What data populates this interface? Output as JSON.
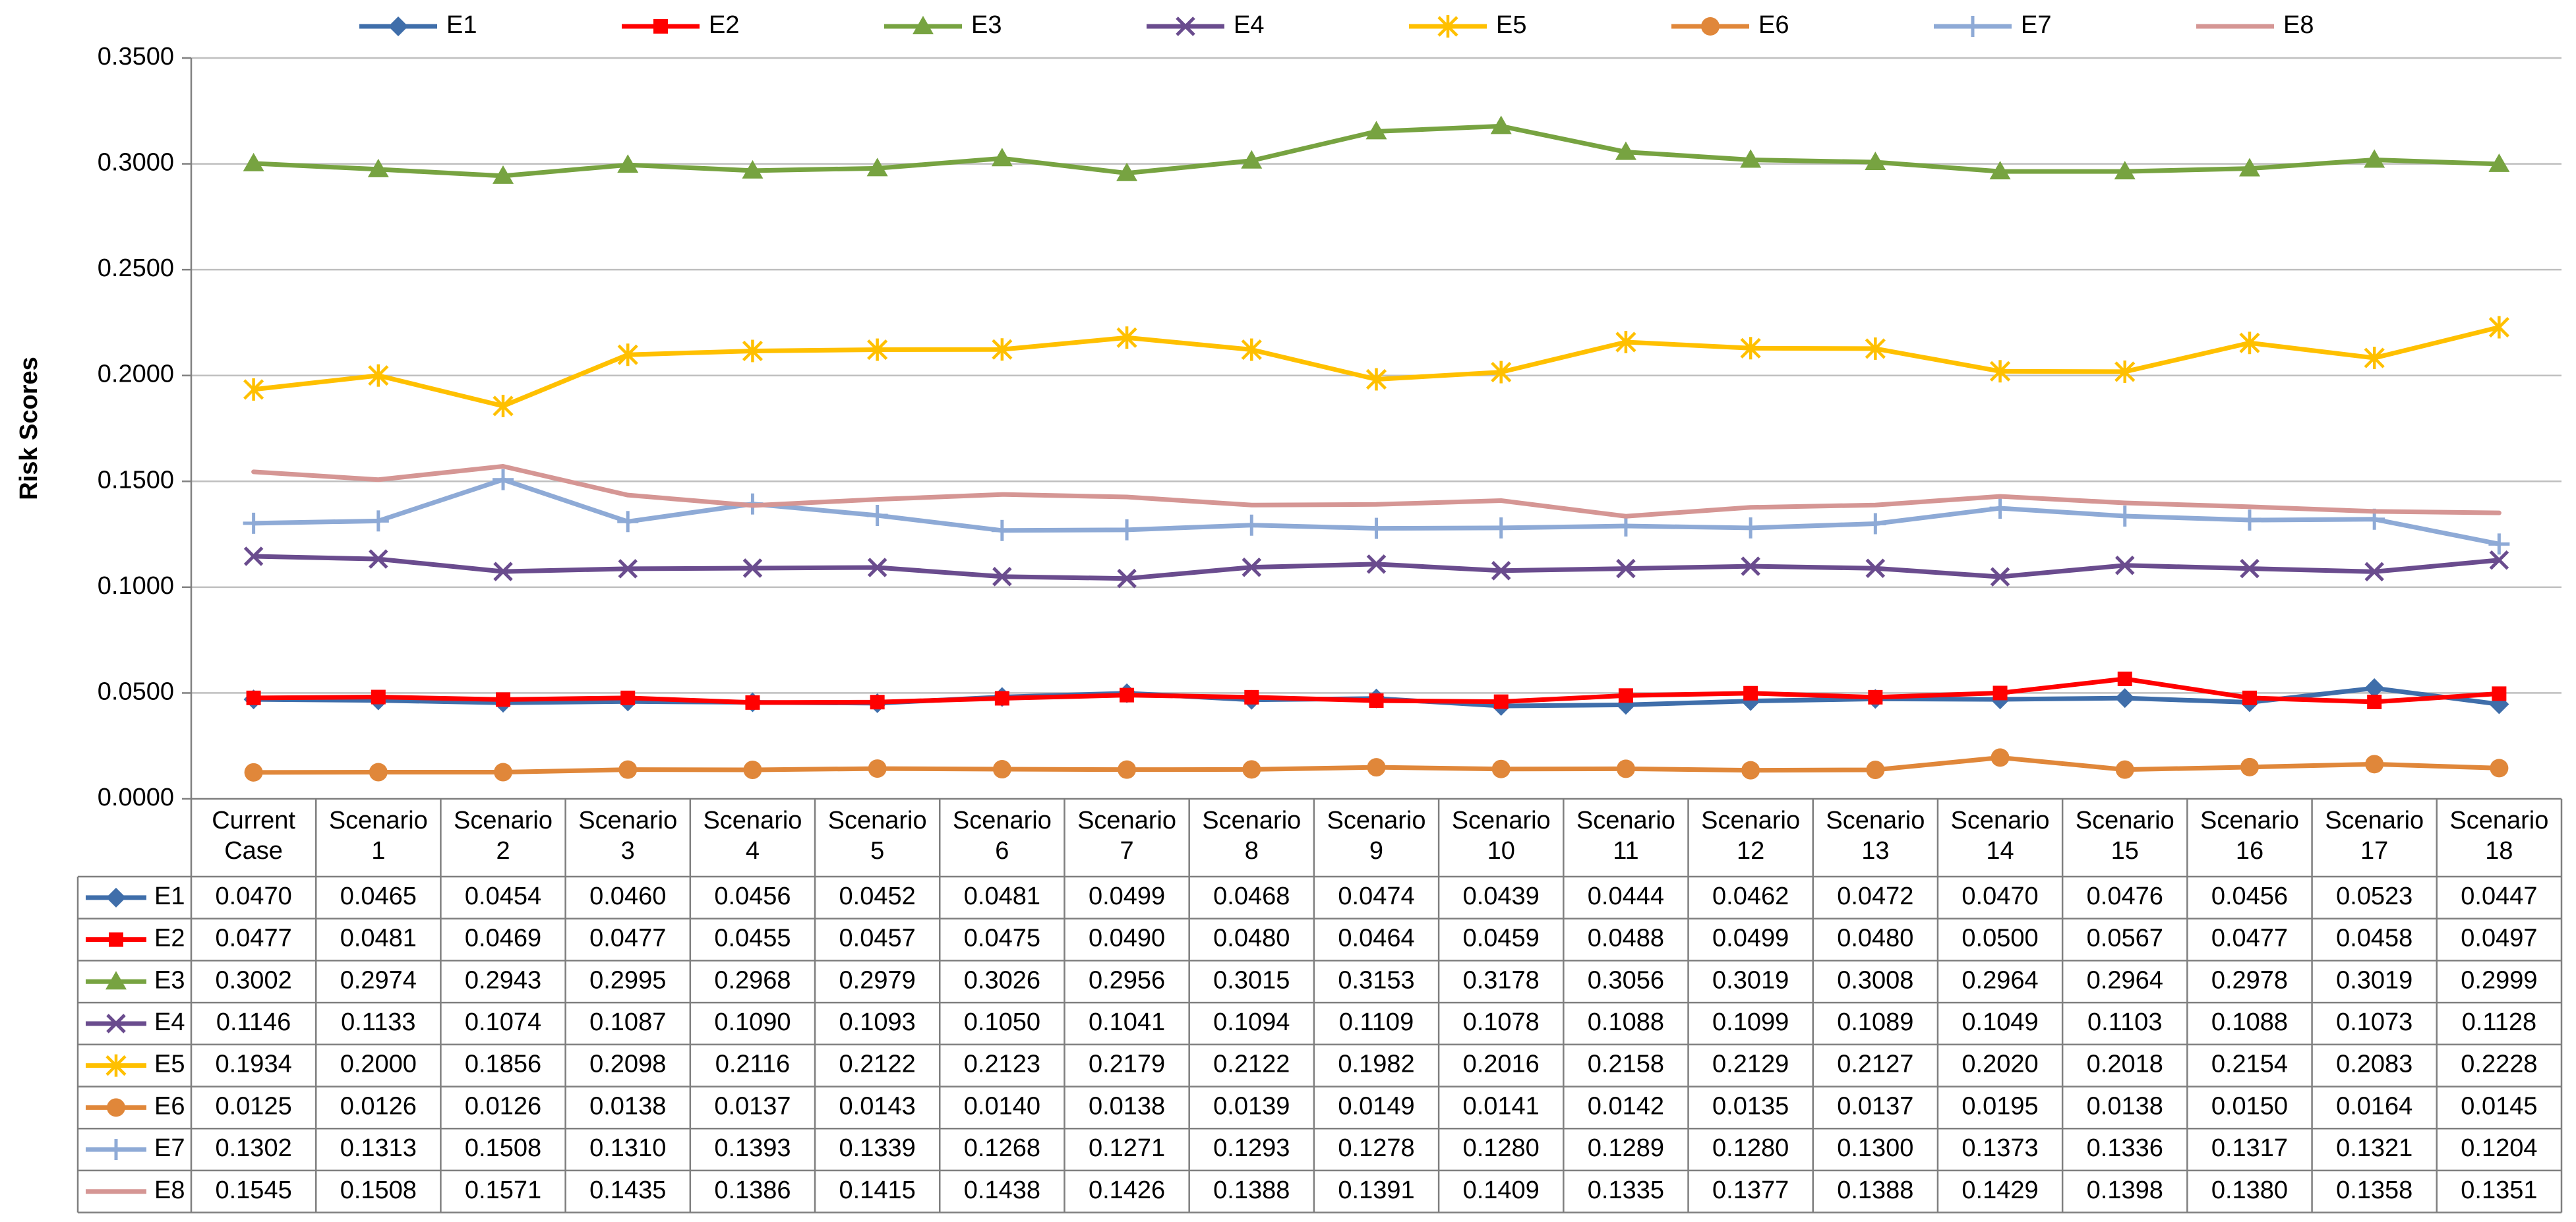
{
  "chart_data": {
    "type": "line",
    "title": "",
    "xlabel": "",
    "ylabel": "Risk Scores",
    "ylim": [
      0,
      0.35
    ],
    "yticks": [
      "0.0000",
      "0.0500",
      "0.1000",
      "0.1500",
      "0.2000",
      "0.2500",
      "0.3000",
      "0.3500"
    ],
    "grid": true,
    "legend_position": "top",
    "categories": [
      [
        "Current",
        "Case"
      ],
      [
        "Scenario",
        "1"
      ],
      [
        "Scenario",
        "2"
      ],
      [
        "Scenario",
        "3"
      ],
      [
        "Scenario",
        "4"
      ],
      [
        "Scenario",
        "5"
      ],
      [
        "Scenario",
        "6"
      ],
      [
        "Scenario",
        "7"
      ],
      [
        "Scenario",
        "8"
      ],
      [
        "Scenario",
        "9"
      ],
      [
        "Scenario",
        "10"
      ],
      [
        "Scenario",
        "11"
      ],
      [
        "Scenario",
        "12"
      ],
      [
        "Scenario",
        "13"
      ],
      [
        "Scenario",
        "14"
      ],
      [
        "Scenario",
        "15"
      ],
      [
        "Scenario",
        "16"
      ],
      [
        "Scenario",
        "17"
      ],
      [
        "Scenario",
        "18"
      ]
    ],
    "series": [
      {
        "name": "E1",
        "color": "#3F6EAA",
        "marker": "diamond",
        "values": [
          "0.0470",
          "0.0465",
          "0.0454",
          "0.0460",
          "0.0456",
          "0.0452",
          "0.0481",
          "0.0499",
          "0.0468",
          "0.0474",
          "0.0439",
          "0.0444",
          "0.0462",
          "0.0472",
          "0.0470",
          "0.0476",
          "0.0456",
          "0.0523",
          "0.0447"
        ]
      },
      {
        "name": "E2",
        "color": "#FF0000",
        "marker": "square",
        "values": [
          "0.0477",
          "0.0481",
          "0.0469",
          "0.0477",
          "0.0455",
          "0.0457",
          "0.0475",
          "0.0490",
          "0.0480",
          "0.0464",
          "0.0459",
          "0.0488",
          "0.0499",
          "0.0480",
          "0.0500",
          "0.0567",
          "0.0477",
          "0.0458",
          "0.0497"
        ]
      },
      {
        "name": "E3",
        "color": "#77A341",
        "marker": "triangle",
        "values": [
          "0.3002",
          "0.2974",
          "0.2943",
          "0.2995",
          "0.2968",
          "0.2979",
          "0.3026",
          "0.2956",
          "0.3015",
          "0.3153",
          "0.3178",
          "0.3056",
          "0.3019",
          "0.3008",
          "0.2964",
          "0.2964",
          "0.2978",
          "0.3019",
          "0.2999"
        ]
      },
      {
        "name": "E4",
        "color": "#6A4C8E",
        "marker": "x",
        "values": [
          "0.1146",
          "0.1133",
          "0.1074",
          "0.1087",
          "0.1090",
          "0.1093",
          "0.1050",
          "0.1041",
          "0.1094",
          "0.1109",
          "0.1078",
          "0.1088",
          "0.1099",
          "0.1089",
          "0.1049",
          "0.1103",
          "0.1088",
          "0.1073",
          "0.1128"
        ]
      },
      {
        "name": "E5",
        "color": "#FFC000",
        "marker": "star",
        "values": [
          "0.1934",
          "0.2000",
          "0.1856",
          "0.2098",
          "0.2116",
          "0.2122",
          "0.2123",
          "0.2179",
          "0.2122",
          "0.1982",
          "0.2016",
          "0.2158",
          "0.2129",
          "0.2127",
          "0.2020",
          "0.2018",
          "0.2154",
          "0.2083",
          "0.2228"
        ]
      },
      {
        "name": "E6",
        "color": "#E0873A",
        "marker": "circle",
        "values": [
          "0.0125",
          "0.0126",
          "0.0126",
          "0.0138",
          "0.0137",
          "0.0143",
          "0.0140",
          "0.0138",
          "0.0139",
          "0.0149",
          "0.0141",
          "0.0142",
          "0.0135",
          "0.0137",
          "0.0195",
          "0.0138",
          "0.0150",
          "0.0164",
          "0.0145"
        ]
      },
      {
        "name": "E7",
        "color": "#8EAAD6",
        "marker": "plus",
        "values": [
          "0.1302",
          "0.1313",
          "0.1508",
          "0.1310",
          "0.1393",
          "0.1339",
          "0.1268",
          "0.1271",
          "0.1293",
          "0.1278",
          "0.1280",
          "0.1289",
          "0.1280",
          "0.1300",
          "0.1373",
          "0.1336",
          "0.1317",
          "0.1321",
          "0.1204"
        ]
      },
      {
        "name": "E8",
        "color": "#D59694",
        "marker": "none",
        "values": [
          "0.1545",
          "0.1508",
          "0.1571",
          "0.1435",
          "0.1386",
          "0.1415",
          "0.1438",
          "0.1426",
          "0.1388",
          "0.1391",
          "0.1409",
          "0.1335",
          "0.1377",
          "0.1388",
          "0.1429",
          "0.1398",
          "0.1380",
          "0.1358",
          "0.1351"
        ]
      }
    ]
  }
}
